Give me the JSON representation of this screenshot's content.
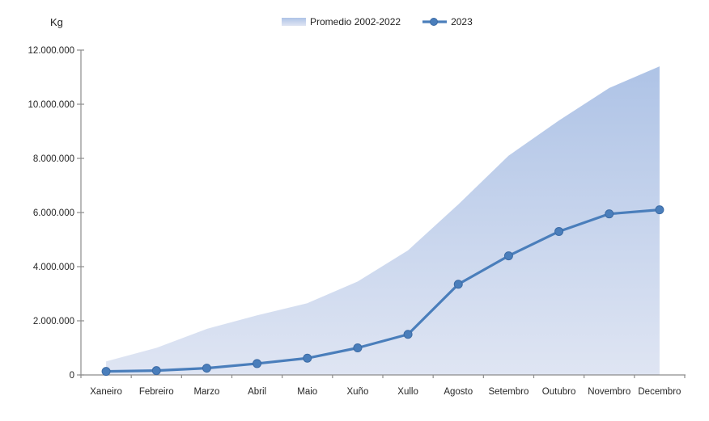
{
  "chart_data": {
    "type": "area+line",
    "title": "",
    "ylabel": "Kg",
    "xlabel": "",
    "grid": false,
    "legend_position": "top",
    "categories": [
      "Xaneiro",
      "Febreiro",
      "Marzo",
      "Abril",
      "Maio",
      "Xuño",
      "Xullo",
      "Agosto",
      "Setembro",
      "Outubro",
      "Novembro",
      "Decembro"
    ],
    "series": [
      {
        "name": "Promedio 2002-2022",
        "type": "area",
        "values": [
          500000,
          1000000,
          1700000,
          2200000,
          2650000,
          3450000,
          4600000,
          6300000,
          8100000,
          9400000,
          10600000,
          11400000
        ]
      },
      {
        "name": "2023",
        "type": "line",
        "values": [
          130000,
          160000,
          250000,
          420000,
          620000,
          1000000,
          1500000,
          3350000,
          4400000,
          5300000,
          5950000,
          6100000
        ]
      }
    ],
    "ylim": [
      0,
      12000000
    ],
    "ytick_interval": 2000000,
    "ytick_labels_bottom_to_top": [
      "0",
      "2.000.000",
      "4.000.000",
      "6.000.000",
      "8.000.000",
      "10.000.000",
      "12.000.000"
    ],
    "colors": {
      "line": "#4a7ebb",
      "marker": "#4a7ebb",
      "marker_edge": "#3c6ba5",
      "area_gradient_top": "#aec3e6",
      "area_gradient_bottom": "#dfe5f3",
      "axis": "#8c8c8c",
      "text": "#262626"
    }
  }
}
